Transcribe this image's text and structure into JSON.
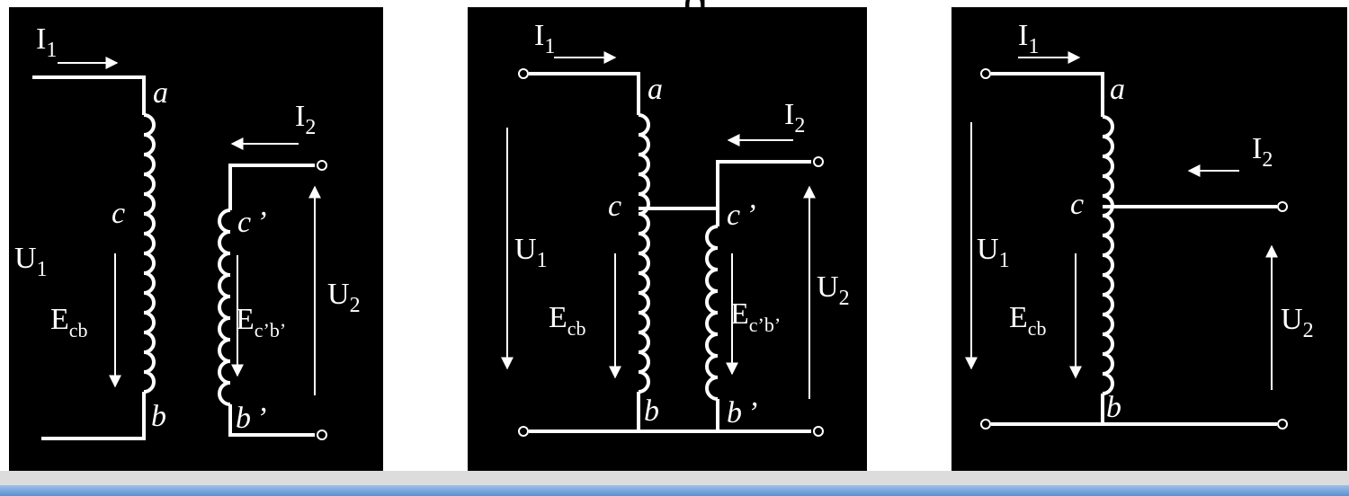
{
  "slide": {
    "title_fragment": "g"
  },
  "colors": {
    "background": "#000000",
    "wire": "#ffffff",
    "band_grey": "#dcdcdc",
    "band_blue": "#7aa7de"
  },
  "icons": {
    "inductor": "coil-winding",
    "terminal": "open-circle",
    "arrow": "current-direction-arrow"
  },
  "panels": [
    {
      "label_I1_main": "I",
      "label_I1_sub": "1",
      "label_I2_main": "I",
      "label_I2_sub": "2",
      "label_a": "a",
      "label_c": "c",
      "label_b": "b",
      "label_cp": "c",
      "label_cp_mark": "’",
      "label_bp": "b",
      "label_bp_mark": "’",
      "label_U1_main": "U",
      "label_U1_sub": "1",
      "label_U2_main": "U",
      "label_U2_sub": "2",
      "label_Ecb_main": "E",
      "label_Ecb_sub": "cb",
      "label_Ecpbp_main": "E",
      "label_Ecpbp_sub": "c’b’"
    },
    {
      "label_I1_main": "I",
      "label_I1_sub": "1",
      "label_I2_main": "I",
      "label_I2_sub": "2",
      "label_a": "a",
      "label_c": "c",
      "label_b": "b",
      "label_cp": "c",
      "label_cp_mark": "’",
      "label_bp": "b",
      "label_bp_mark": "’",
      "label_U1_main": "U",
      "label_U1_sub": "1",
      "label_U2_main": "U",
      "label_U2_sub": "2",
      "label_Ecb_main": "E",
      "label_Ecb_sub": "cb",
      "label_Ecpbp_main": "E",
      "label_Ecpbp_sub": "c’b’"
    },
    {
      "label_I1_main": "I",
      "label_I1_sub": "1",
      "label_I2_main": "I",
      "label_I2_sub": "2",
      "label_a": "a",
      "label_c": "c",
      "label_b": "b",
      "label_U1_main": "U",
      "label_U1_sub": "1",
      "label_U2_main": "U",
      "label_U2_sub": "2",
      "label_Ecb_main": "E",
      "label_Ecb_sub": "cb"
    }
  ]
}
